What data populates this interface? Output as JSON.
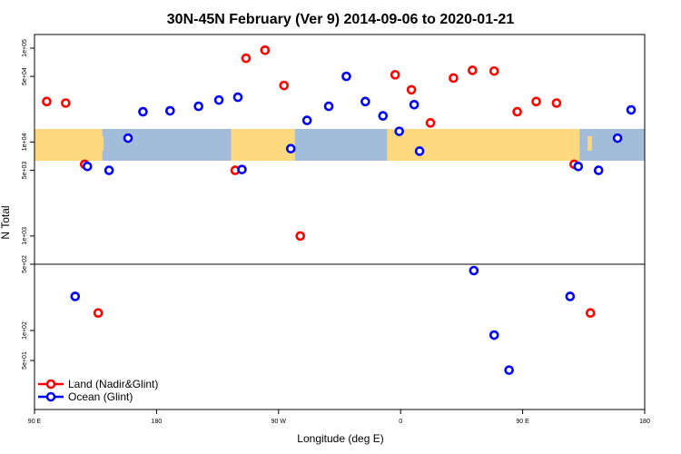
{
  "chart_data": {
    "type": "scatter",
    "title": "30N-45N February (Ver 9)   2014-09-06 to 2020-01-21",
    "xlabel": "Longitude (deg E)",
    "ylabel": "N Total",
    "x_ticks": [
      {
        "value": 90,
        "label": "90 E"
      },
      {
        "value": 180,
        "label": "180"
      },
      {
        "value": 270,
        "label": "90 W"
      },
      {
        "value": 360,
        "label": "0"
      },
      {
        "value": 450,
        "label": "90 E"
      },
      {
        "value": 540,
        "label": "180"
      }
    ],
    "xlim": [
      90,
      540
    ],
    "y_ticks_top": [
      "1e+05",
      "5e+04",
      "1e+04",
      "5e+03",
      "1e+03",
      "5e+02"
    ],
    "y_ticks_bottom": [
      "1e+02",
      "5e+01"
    ],
    "legend_position": "bottom-left",
    "map_band": {
      "lat_range": "30N-45N",
      "land_color": "#ffd980",
      "ocean_color": "#a3bcd9"
    },
    "series": [
      {
        "name": "Land (Nadir&Glint)",
        "color": "#ff0000",
        "points": [
          {
            "x": 99,
            "y": 27000
          },
          {
            "x": 113,
            "y": 26000
          },
          {
            "x": 127,
            "y": 5800
          },
          {
            "x": 137,
            "y": 150
          },
          {
            "x": 238,
            "y": 5000
          },
          {
            "x": 246,
            "y": 78000
          },
          {
            "x": 260,
            "y": 95000
          },
          {
            "x": 274,
            "y": 40000
          },
          {
            "x": 286,
            "y": 1000
          },
          {
            "x": 356,
            "y": 52000
          },
          {
            "x": 368,
            "y": 36000
          },
          {
            "x": 382,
            "y": 16000
          },
          {
            "x": 399,
            "y": 48000
          },
          {
            "x": 413,
            "y": 58000
          },
          {
            "x": 429,
            "y": 57000
          },
          {
            "x": 446,
            "y": 21000
          },
          {
            "x": 460,
            "y": 27000
          },
          {
            "x": 475,
            "y": 26000
          },
          {
            "x": 488,
            "y": 5800
          },
          {
            "x": 500,
            "y": 150
          }
        ]
      },
      {
        "name": "Ocean (Glint)",
        "color": "#0000ff",
        "points": [
          {
            "x": 120,
            "y": 220
          },
          {
            "x": 129,
            "y": 5500
          },
          {
            "x": 145,
            "y": 5000
          },
          {
            "x": 159,
            "y": 11000
          },
          {
            "x": 170,
            "y": 21000
          },
          {
            "x": 190,
            "y": 21500
          },
          {
            "x": 211,
            "y": 24000
          },
          {
            "x": 226,
            "y": 28000
          },
          {
            "x": 240,
            "y": 30000
          },
          {
            "x": 243,
            "y": 5100
          },
          {
            "x": 279,
            "y": 8500
          },
          {
            "x": 291,
            "y": 17000
          },
          {
            "x": 307,
            "y": 24000
          },
          {
            "x": 320,
            "y": 50000
          },
          {
            "x": 334,
            "y": 27000
          },
          {
            "x": 347,
            "y": 19000
          },
          {
            "x": 359,
            "y": 13000
          },
          {
            "x": 370,
            "y": 25000
          },
          {
            "x": 374,
            "y": 8000
          },
          {
            "x": 414,
            "y": 400
          },
          {
            "x": 429,
            "y": 90
          },
          {
            "x": 440,
            "y": 40
          },
          {
            "x": 485,
            "y": 220
          },
          {
            "x": 491,
            "y": 5500
          },
          {
            "x": 506,
            "y": 5000
          },
          {
            "x": 520,
            "y": 11000
          },
          {
            "x": 530,
            "y": 22000
          }
        ]
      }
    ]
  }
}
